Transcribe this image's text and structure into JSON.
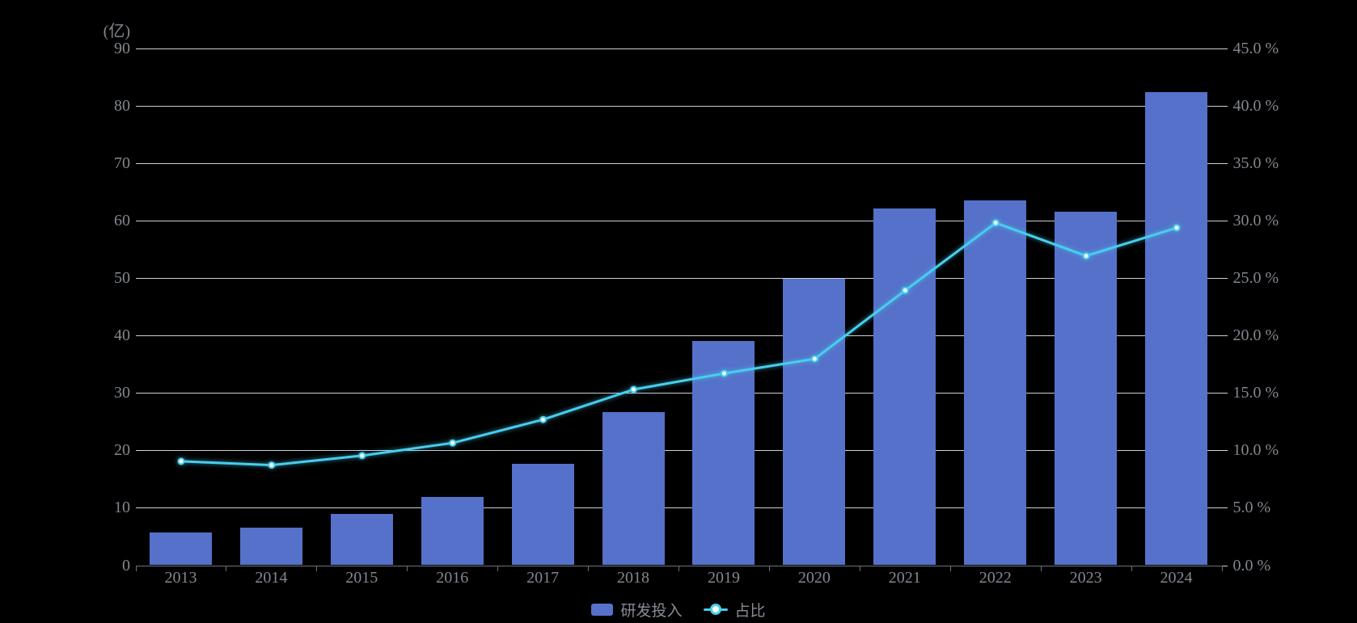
{
  "colors": {
    "background": "#000000",
    "bar": "#5571C9",
    "line": "#47CDEE",
    "marker_fill": "#ffffff",
    "grid_line": "#dde1e8",
    "axis_line": "#6e7079",
    "axis_text": "#82878f",
    "legend_text": "#878c95"
  },
  "legend": {
    "bar_label": "研发投入",
    "line_label": "占比"
  },
  "chart_data": {
    "type": "bar",
    "combo": "bar+line",
    "title": "",
    "categories": [
      "2013",
      "2014",
      "2015",
      "2016",
      "2017",
      "2018",
      "2019",
      "2020",
      "2021",
      "2022",
      "2023",
      "2024"
    ],
    "series": [
      {
        "name": "研发投入",
        "type": "bar",
        "axis": "left",
        "unit": "亿",
        "color": "#5571C9",
        "values": [
          5.63,
          6.52,
          8.92,
          11.84,
          17.59,
          26.7,
          38.96,
          49.89,
          62.03,
          63.46,
          61.5,
          82.28
        ]
      },
      {
        "name": "占比",
        "type": "line",
        "axis": "right",
        "unit": "%",
        "color": "#47CDEE",
        "marker": "empty-circle",
        "values": [
          9.08,
          8.75,
          9.57,
          10.67,
          12.71,
          15.33,
          16.73,
          17.99,
          23.95,
          29.83,
          26.95,
          29.4
        ]
      }
    ],
    "left_axis": {
      "unit_label": "(亿)",
      "min": 0,
      "max": 90,
      "step": 10,
      "tick_labels": [
        "0",
        "10",
        "20",
        "30",
        "40",
        "50",
        "60",
        "70",
        "80",
        "90"
      ]
    },
    "right_axis": {
      "min": 0,
      "max": 45,
      "step": 5,
      "suffix": " %",
      "tick_labels": [
        "0.0 %",
        "5.0 %",
        "10.0 %",
        "15.0 %",
        "20.0 %",
        "25.0 %",
        "30.0 %",
        "35.0 %",
        "40.0 %",
        "45.0 %"
      ]
    },
    "grid": true,
    "legend_position": "bottom-center"
  }
}
